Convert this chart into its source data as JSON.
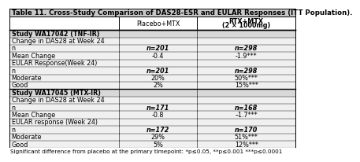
{
  "title": "Table 11. Cross-Study Comparison of DAS28-ESR and EULAR Responses (ITT Population).",
  "rows": [
    {
      "label": "Study WA17042 (TNF-IR)",
      "bold_label": true,
      "col1": "",
      "col2": "",
      "bold_vals": false,
      "italic_vals": false
    },
    {
      "label": "Change in DAS28 at Week 24",
      "bold_label": false,
      "col1": "",
      "col2": "",
      "bold_vals": false,
      "italic_vals": false
    },
    {
      "label": "n",
      "bold_label": false,
      "col1": "n=201",
      "col2": "n=298",
      "bold_vals": true,
      "italic_vals": true
    },
    {
      "label": "Mean Change",
      "bold_label": false,
      "col1": "-0.4",
      "col2": "-1.9***",
      "bold_vals": false,
      "italic_vals": false
    },
    {
      "label": "EULAR Response(Week 24)",
      "bold_label": false,
      "col1": "",
      "col2": "",
      "bold_vals": false,
      "italic_vals": false
    },
    {
      "label": "n",
      "bold_label": false,
      "col1": "n=201",
      "col2": "n=298",
      "bold_vals": true,
      "italic_vals": true
    },
    {
      "label": "Moderate",
      "bold_label": false,
      "col1": "20%",
      "col2": "50%***",
      "bold_vals": false,
      "italic_vals": false
    },
    {
      "label": "Good",
      "bold_label": false,
      "col1": "2%",
      "col2": "15%***",
      "bold_vals": false,
      "italic_vals": false
    },
    {
      "label": "Study WA17045 (MTX-IR)",
      "bold_label": true,
      "col1": "",
      "col2": "",
      "bold_vals": false,
      "italic_vals": false
    },
    {
      "label": "Change in DAS28 at Week 24",
      "bold_label": false,
      "col1": "",
      "col2": "",
      "bold_vals": false,
      "italic_vals": false
    },
    {
      "label": "n",
      "bold_label": false,
      "col1": "n=171",
      "col2": "n=168",
      "bold_vals": true,
      "italic_vals": true
    },
    {
      "label": "Mean Change",
      "bold_label": false,
      "col1": "-0.8",
      "col2": "–1.7***",
      "bold_vals": false,
      "italic_vals": false
    },
    {
      "label": "EULAR response (Week 24)",
      "bold_label": false,
      "col1": "",
      "col2": "",
      "bold_vals": false,
      "italic_vals": false
    },
    {
      "label": "n",
      "bold_label": false,
      "col1": "n=172",
      "col2": "n=170",
      "bold_vals": true,
      "italic_vals": true
    },
    {
      "label": "Moderate",
      "bold_label": false,
      "col1": "29%",
      "col2": "51%***",
      "bold_vals": false,
      "italic_vals": false
    },
    {
      "label": "Good",
      "bold_label": false,
      "col1": "5%",
      "col2": "12%***",
      "bold_vals": false,
      "italic_vals": false
    }
  ],
  "footnote": "Significant difference from placebo at the primary timepoint: *p≤0.05, **p≤0.001 ***p≤0.0001",
  "title_bg": "#c8c8c8",
  "study_bg": "#d8d8d8",
  "body_bg": "#f0f0f0",
  "font_size": 5.8,
  "title_font_size": 6.2,
  "footnote_font_size": 5.2,
  "header_col1": "Placebo+MTX",
  "header_col2_line1": "RTX+MTX",
  "header_col2_line2": "(2 × 1000mg)"
}
